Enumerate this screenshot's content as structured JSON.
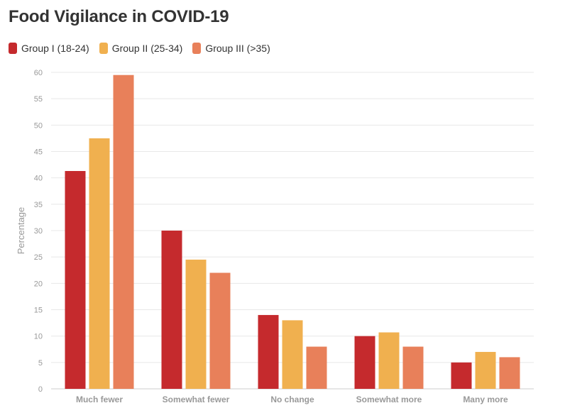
{
  "chart_data": {
    "type": "bar",
    "title": "Food Vigilance in COVID-19",
    "ylabel": "Percentage",
    "xlabel": "",
    "ylim": [
      0,
      60
    ],
    "yticks": [
      0,
      5,
      10,
      15,
      20,
      25,
      30,
      35,
      40,
      45,
      50,
      55,
      60
    ],
    "grid": true,
    "legend_position": "top-left",
    "categories": [
      "Much fewer",
      "Somewhat fewer",
      "No change",
      "Somewhat more",
      "Many more"
    ],
    "series": [
      {
        "name": "Group I (18-24)",
        "color": "#c52a2d",
        "values": [
          41.3,
          30.0,
          14.0,
          10.0,
          5.0
        ]
      },
      {
        "name": "Group II (25-34)",
        "color": "#f0b04f",
        "values": [
          47.5,
          24.5,
          13.0,
          10.7,
          7.0
        ]
      },
      {
        "name": "Group III (>35)",
        "color": "#e8805a",
        "values": [
          59.5,
          22.0,
          8.0,
          8.0,
          6.0
        ]
      }
    ]
  }
}
